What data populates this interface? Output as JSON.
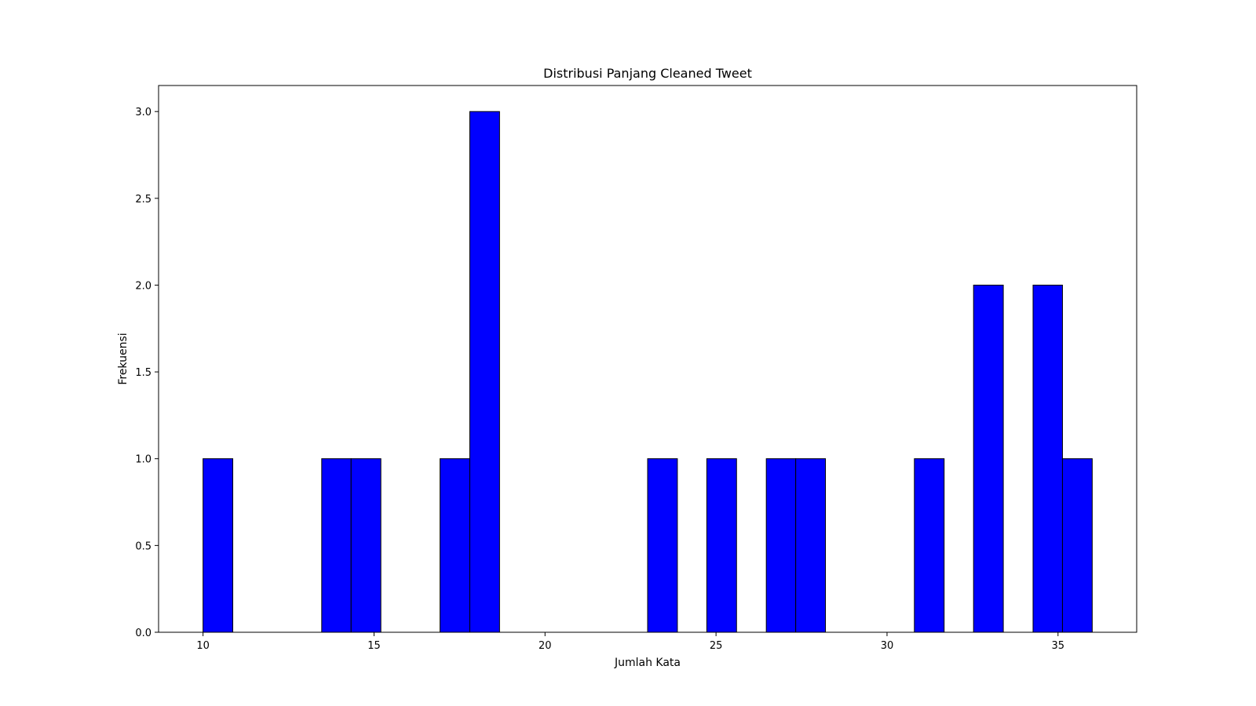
{
  "chart_data": {
    "type": "bar",
    "subtype": "histogram",
    "title": "Distribusi Panjang Cleaned Tweet",
    "xlabel": "Jumlah Kata",
    "ylabel": "Frekuensi",
    "xlim": [
      8.7,
      37.3
    ],
    "ylim": [
      0,
      3.15
    ],
    "xticks": [
      10,
      15,
      20,
      25,
      30,
      35
    ],
    "xtick_labels": [
      "10",
      "15",
      "20",
      "25",
      "30",
      "35"
    ],
    "yticks": [
      0.0,
      0.5,
      1.0,
      1.5,
      2.0,
      2.5,
      3.0
    ],
    "ytick_labels": [
      "0.0",
      "0.5",
      "1.0",
      "1.5",
      "2.0",
      "2.5",
      "3.0"
    ],
    "bins": [
      {
        "x0": 10.0,
        "x1": 10.87,
        "value": 1
      },
      {
        "x0": 13.47,
        "x1": 14.33,
        "value": 1
      },
      {
        "x0": 14.33,
        "x1": 15.2,
        "value": 1
      },
      {
        "x0": 16.93,
        "x1": 17.8,
        "value": 1
      },
      {
        "x0": 17.8,
        "x1": 18.67,
        "value": 3
      },
      {
        "x0": 23.0,
        "x1": 23.87,
        "value": 1
      },
      {
        "x0": 24.73,
        "x1": 25.6,
        "value": 1
      },
      {
        "x0": 26.47,
        "x1": 27.33,
        "value": 1
      },
      {
        "x0": 27.33,
        "x1": 28.2,
        "value": 1
      },
      {
        "x0": 30.8,
        "x1": 31.67,
        "value": 1
      },
      {
        "x0": 32.53,
        "x1": 33.4,
        "value": 2
      },
      {
        "x0": 34.27,
        "x1": 35.13,
        "value": 2
      },
      {
        "x0": 35.13,
        "x1": 36.0,
        "value": 1
      }
    ],
    "bar_color": "#0000ff",
    "edge_color": "#000000",
    "grid": false,
    "legend": "none"
  }
}
